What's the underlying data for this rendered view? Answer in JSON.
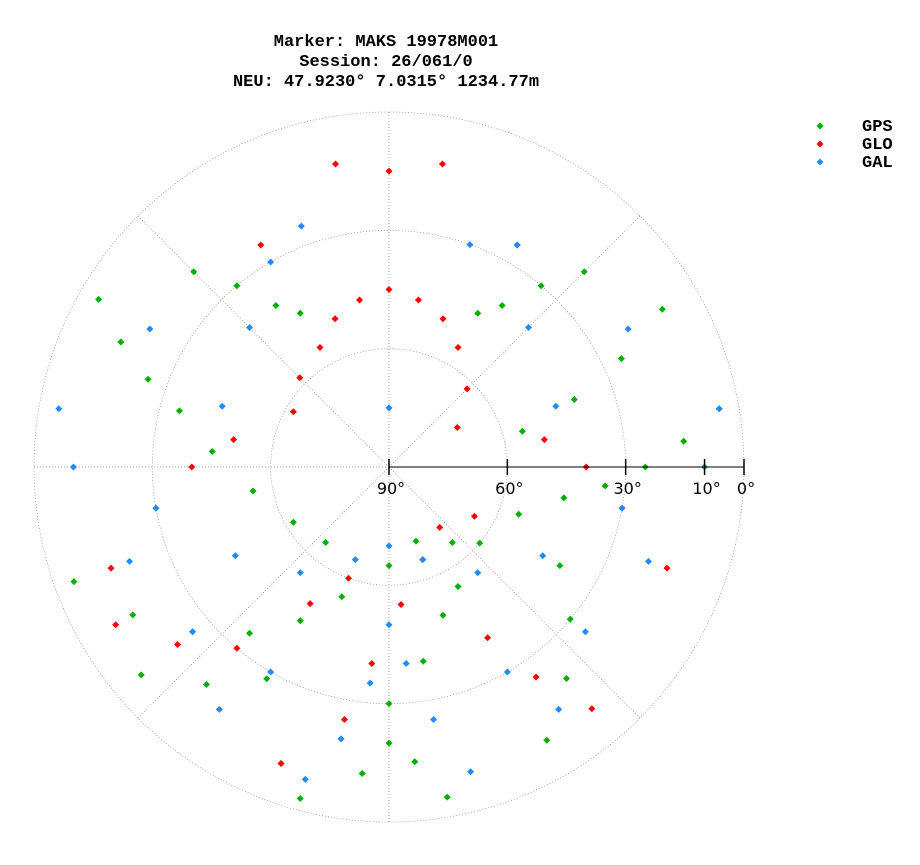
{
  "chart_data": {
    "type": "skyplot",
    "title": "Marker: MAKS 19978M001",
    "subtitle": [
      "Session: 26/061/0",
      "NEU: 47.9230° 7.0315° 1234.77m"
    ],
    "rlim": [
      90,
      0
    ],
    "rticks": [
      {
        "value": 90,
        "label": "90°"
      },
      {
        "value": 60,
        "label": "60°"
      },
      {
        "value": 30,
        "label": "30°"
      },
      {
        "value": 10,
        "label": "10°"
      },
      {
        "value": 0,
        "label": "0°"
      }
    ],
    "grid_circles": [
      60,
      30,
      0
    ],
    "grid_azimuths": [
      0,
      45,
      90,
      135,
      180,
      225,
      270,
      315
    ],
    "legend": "upper right",
    "series": [
      {
        "name": "GPS",
        "color": "#00b000",
        "azimuth": [
          200,
          190,
          180,
          170,
          160,
          150,
          130,
          110,
          100,
          95,
          90,
          85,
          80,
          250,
          240,
          230,
          220,
          210,
          200,
          180,
          160,
          140,
          300,
          295,
          290,
          285,
          275,
          260,
          240,
          220,
          315,
          320,
          325,
          330,
          45,
          40,
          35,
          30,
          60,
          65,
          70,
          75,
          170,
          175,
          180,
          185,
          195,
          150,
          140,
          130,
          120,
          230,
          220,
          210
        ],
        "elevation": [
          10,
          20,
          30,
          40,
          50,
          55,
          60,
          55,
          45,
          35,
          25,
          15,
          5,
          5,
          15,
          25,
          35,
          45,
          55,
          65,
          70,
          65,
          5,
          15,
          25,
          35,
          45,
          55,
          62,
          65,
          20,
          30,
          40,
          45,
          20,
          30,
          40,
          45,
          10,
          25,
          40,
          55,
          5,
          15,
          20,
          12,
          3,
          10,
          20,
          30,
          40,
          8,
          18,
          28
        ]
      },
      {
        "name": "GLO",
        "color": "#ff0000",
        "azimuth": [
          330,
          340,
          350,
          0,
          10,
          20,
          30,
          45,
          60,
          300,
          315,
          0,
          350,
          10,
          30,
          330,
          200,
          190,
          185,
          175,
          160,
          140,
          120,
          220,
          230,
          240,
          150,
          145,
          140,
          260,
          270,
          280,
          100,
          90,
          80,
          110,
          250,
          210,
          200
        ],
        "elevation": [
          55,
          50,
          47,
          45,
          47,
          50,
          55,
          62,
          70,
          62,
          58,
          15,
          12,
          12,
          25,
          25,
          10,
          25,
          40,
          55,
          65,
          70,
          65,
          30,
          20,
          10,
          40,
          25,
          10,
          30,
          40,
          50,
          30,
          40,
          50,
          15,
          15,
          50,
          60
        ]
      },
      {
        "name": "GAL",
        "color": "#1e8cff",
        "azimuth": [
          330,
          340,
          20,
          30,
          300,
          60,
          270,
          90,
          260,
          100,
          240,
          120,
          220,
          140,
          200,
          160,
          180,
          0,
          180,
          185,
          190,
          195,
          175,
          170,
          165,
          210,
          215,
          150,
          145,
          230,
          130,
          250,
          110,
          280,
          80,
          315,
          45,
          290,
          70
        ],
        "elevation": [
          30,
          25,
          30,
          25,
          20,
          20,
          10,
          10,
          30,
          30,
          45,
          45,
          55,
          55,
          65,
          65,
          70,
          75,
          50,
          35,
          20,
          8,
          40,
          25,
          10,
          30,
          15,
          30,
          15,
          25,
          25,
          20,
          20,
          5,
          5,
          40,
          40,
          45,
          45
        ]
      }
    ]
  }
}
